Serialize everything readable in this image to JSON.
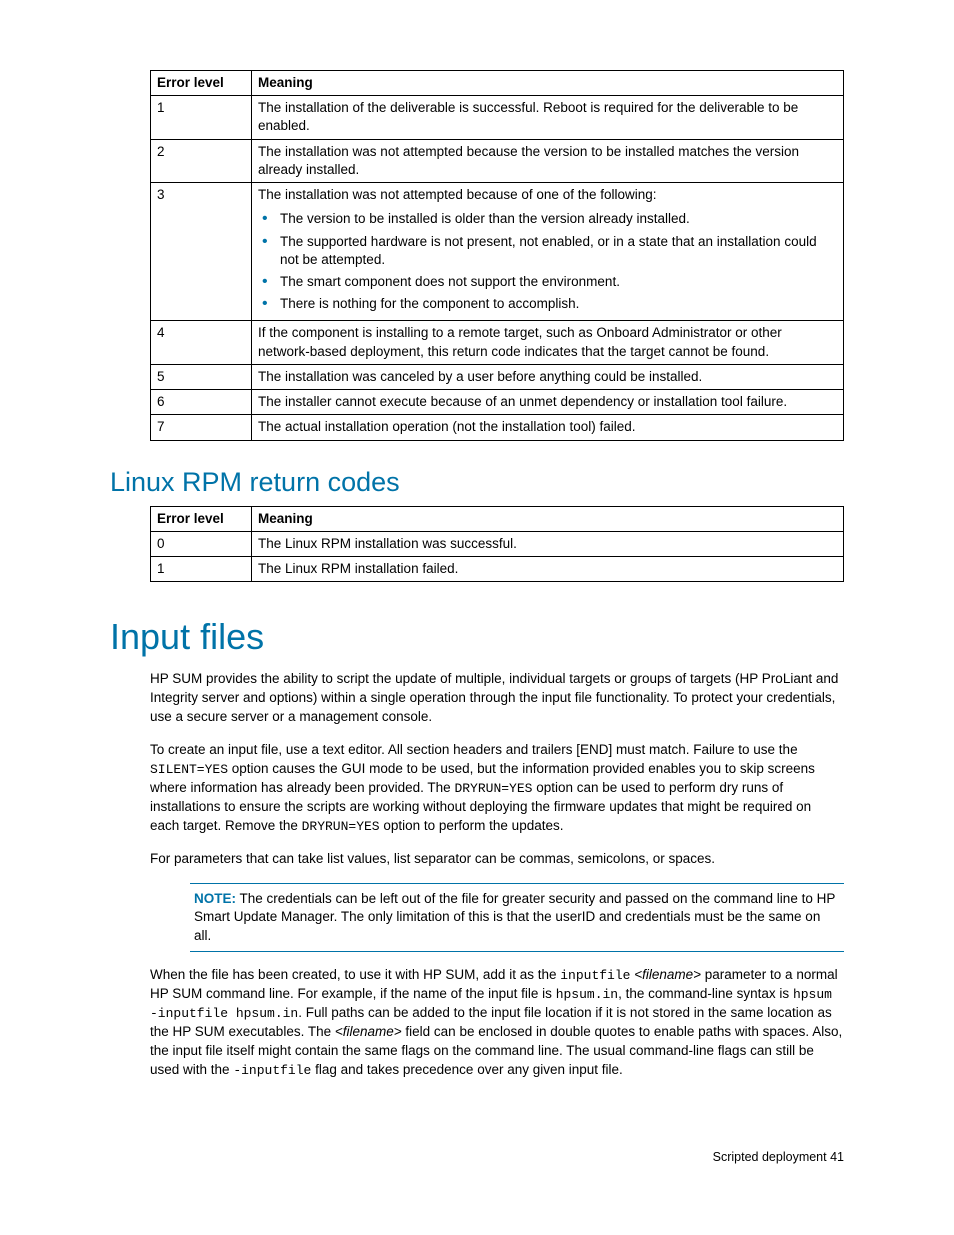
{
  "table1": {
    "headers": [
      "Error level",
      "Meaning"
    ],
    "rows": [
      {
        "level": "1",
        "meaning": "The installation of the deliverable is successful. Reboot is required for the deliverable to be enabled."
      },
      {
        "level": "2",
        "meaning": "The installation was not attempted because the version to be installed matches the version already installed."
      },
      {
        "level": "3",
        "meaning": "The installation was not attempted because of one of the following:",
        "bullets": [
          "The version to be installed is older than the version already installed.",
          "The supported hardware is not present, not enabled, or in a state that an installation could not be attempted.",
          "The smart component does not support the environment.",
          "There is nothing for the component to accomplish."
        ]
      },
      {
        "level": "4",
        "meaning": "If the component is installing to a remote target, such as Onboard Administrator or other network-based deployment, this return code indicates that the target cannot be found."
      },
      {
        "level": "5",
        "meaning": "The installation was canceled by a user before anything could be installed."
      },
      {
        "level": "6",
        "meaning": "The installer cannot execute because of an unmet dependency or installation tool failure."
      },
      {
        "level": "7",
        "meaning": "The actual installation operation (not the installation tool) failed."
      }
    ]
  },
  "heading_rpm": "Linux RPM return codes",
  "table2": {
    "headers": [
      "Error level",
      "Meaning"
    ],
    "rows": [
      {
        "level": "0",
        "meaning": "The Linux RPM installation was successful."
      },
      {
        "level": "1",
        "meaning": "The Linux RPM installation failed."
      }
    ]
  },
  "heading_input": "Input files",
  "para1": "HP SUM provides the ability to script the update of multiple, individual targets or groups of targets (HP ProLiant and Integrity server and options) within a single operation through the input file functionality. To protect your credentials, use a secure server or a management console.",
  "para2_a": "To create an input file, use a text editor. All section headers and trailers [END] must match. Failure to use the ",
  "para2_code1": "SILENT=YES",
  "para2_b": " option causes the GUI mode to be used, but the information provided enables you to skip screens where information has already been provided. The ",
  "para2_code2": "DRYRUN=YES",
  "para2_c": " option can be used to perform dry runs of installations to ensure the scripts are working without deploying the firmware updates that might be required on each target. Remove the ",
  "para2_code3": "DRYRUN=YES",
  "para2_d": " option to perform the updates.",
  "para3": "For parameters that can take list values, list separator can be commas, semicolons, or spaces.",
  "note_label": "NOTE:",
  "note_text": " The credentials can be left out of the file for greater security and passed on the command line to HP Smart Update Manager. The only limitation of this is that the userID and credentials must be the same on all.",
  "para4_a": "When the file has been created, to use it with HP SUM, add it as the ",
  "para4_code1": "inputfile",
  "para4_b": " ",
  "para4_it1": "<filename>",
  "para4_c": " parameter to a normal HP SUM command line. For example, if the name of the input file is ",
  "para4_code2": "hpsum.in",
  "para4_d": ", the command-line syntax is ",
  "para4_code3": "hpsum -inputfile hpsum.in",
  "para4_e": ". Full paths can be added to the input file location if it is not stored in the same location as the HP SUM executables. The ",
  "para4_it2": "<filename>",
  "para4_f": " field can be enclosed in double quotes to enable paths with spaces. Also, the input file itself might contain the same flags on the command line. The usual command-line flags can still be used with the ",
  "para4_code4": "-inputfile",
  "para4_g": " flag and takes precedence over any given input file.",
  "footer": "Scripted deployment   41"
}
